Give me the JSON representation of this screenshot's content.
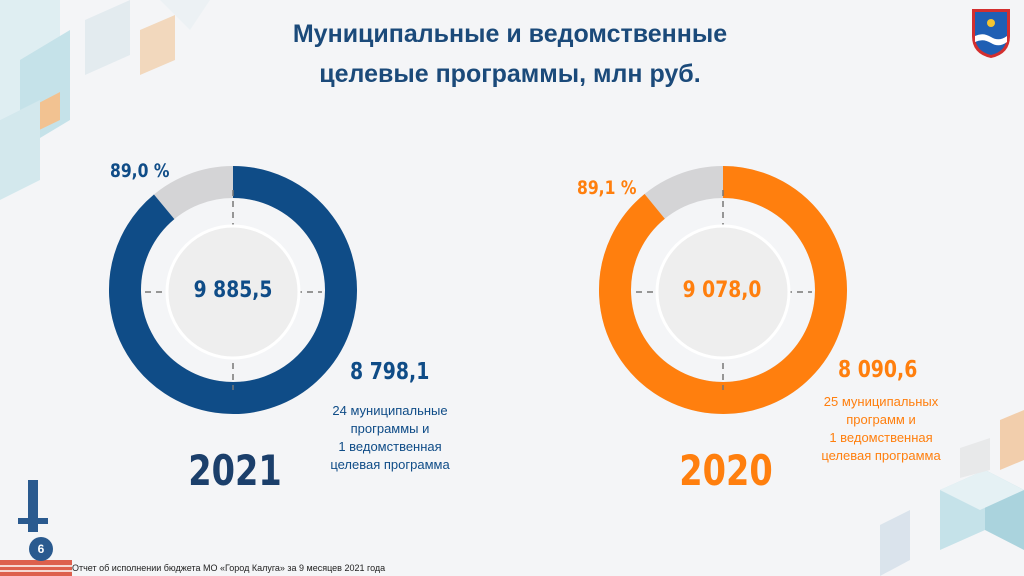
{
  "title_lines": [
    "Муниципальные и ведомственные",
    "целевые программы, млн руб."
  ],
  "footer": "Отчет об исполнении бюджета МО «Город Калуга» за 9 месяцев 2021 года",
  "page_number": "6",
  "colors": {
    "blue": "#0f4c87",
    "orange": "#ff7f0e",
    "gray": "#d4d4d6",
    "title": "#1b4a7a"
  },
  "chart_data": [
    {
      "type": "pie",
      "variant": "donut",
      "year": "2021",
      "total_label": "9 885,5",
      "executed_label": "8 798,1",
      "percent_label": "89,0 %",
      "total": 9885.5,
      "executed": 8798.1,
      "percent": 89.0,
      "note_lines": [
        "24 муниципальные",
        "программы и",
        "1 ведомственная",
        "целевая программа"
      ],
      "color": "#0f4c87"
    },
    {
      "type": "pie",
      "variant": "donut",
      "year": "2020",
      "total_label": "9 078,0",
      "executed_label": "8 090,6",
      "percent_label": "89,1 %",
      "total": 9078.0,
      "executed": 8090.6,
      "percent": 89.1,
      "note_lines": [
        "25 муниципальных",
        "программ и",
        "1 ведомственная",
        "целевая программа"
      ],
      "color": "#ff7f0e"
    }
  ]
}
